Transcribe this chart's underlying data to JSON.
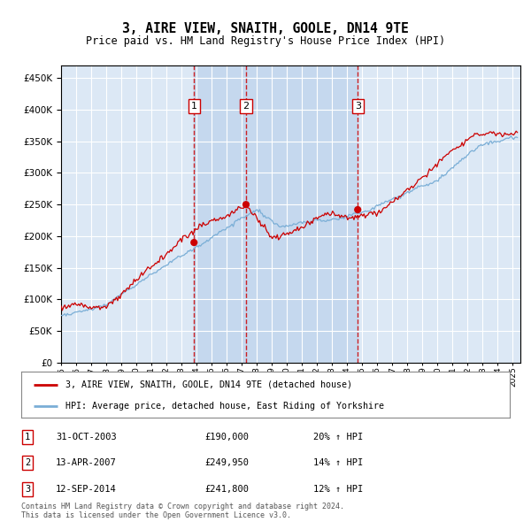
{
  "title": "3, AIRE VIEW, SNAITH, GOOLE, DN14 9TE",
  "subtitle": "Price paid vs. HM Land Registry's House Price Index (HPI)",
  "red_label": "3, AIRE VIEW, SNAITH, GOOLE, DN14 9TE (detached house)",
  "blue_label": "HPI: Average price, detached house, East Riding of Yorkshire",
  "footer1": "Contains HM Land Registry data © Crown copyright and database right 2024.",
  "footer2": "This data is licensed under the Open Government Licence v3.0.",
  "transactions": [
    {
      "num": 1,
      "date": "31-OCT-2003",
      "price": 190000,
      "hpi_pct": "20%",
      "x": 2003.83
    },
    {
      "num": 2,
      "date": "13-APR-2007",
      "price": 249950,
      "hpi_pct": "14%",
      "x": 2007.28
    },
    {
      "num": 3,
      "date": "12-SEP-2014",
      "price": 241800,
      "hpi_pct": "12%",
      "x": 2014.7
    }
  ],
  "ylim": [
    0,
    470000
  ],
  "xlim_start": 1995.0,
  "xlim_end": 2025.5,
  "background_color": "#ffffff",
  "plot_bg_color": "#dce8f5",
  "grid_color": "#ffffff",
  "highlight_color": "#c5d8ee",
  "red_color": "#cc0000",
  "blue_color": "#7aaed6",
  "dashed_color": "#cc0000"
}
